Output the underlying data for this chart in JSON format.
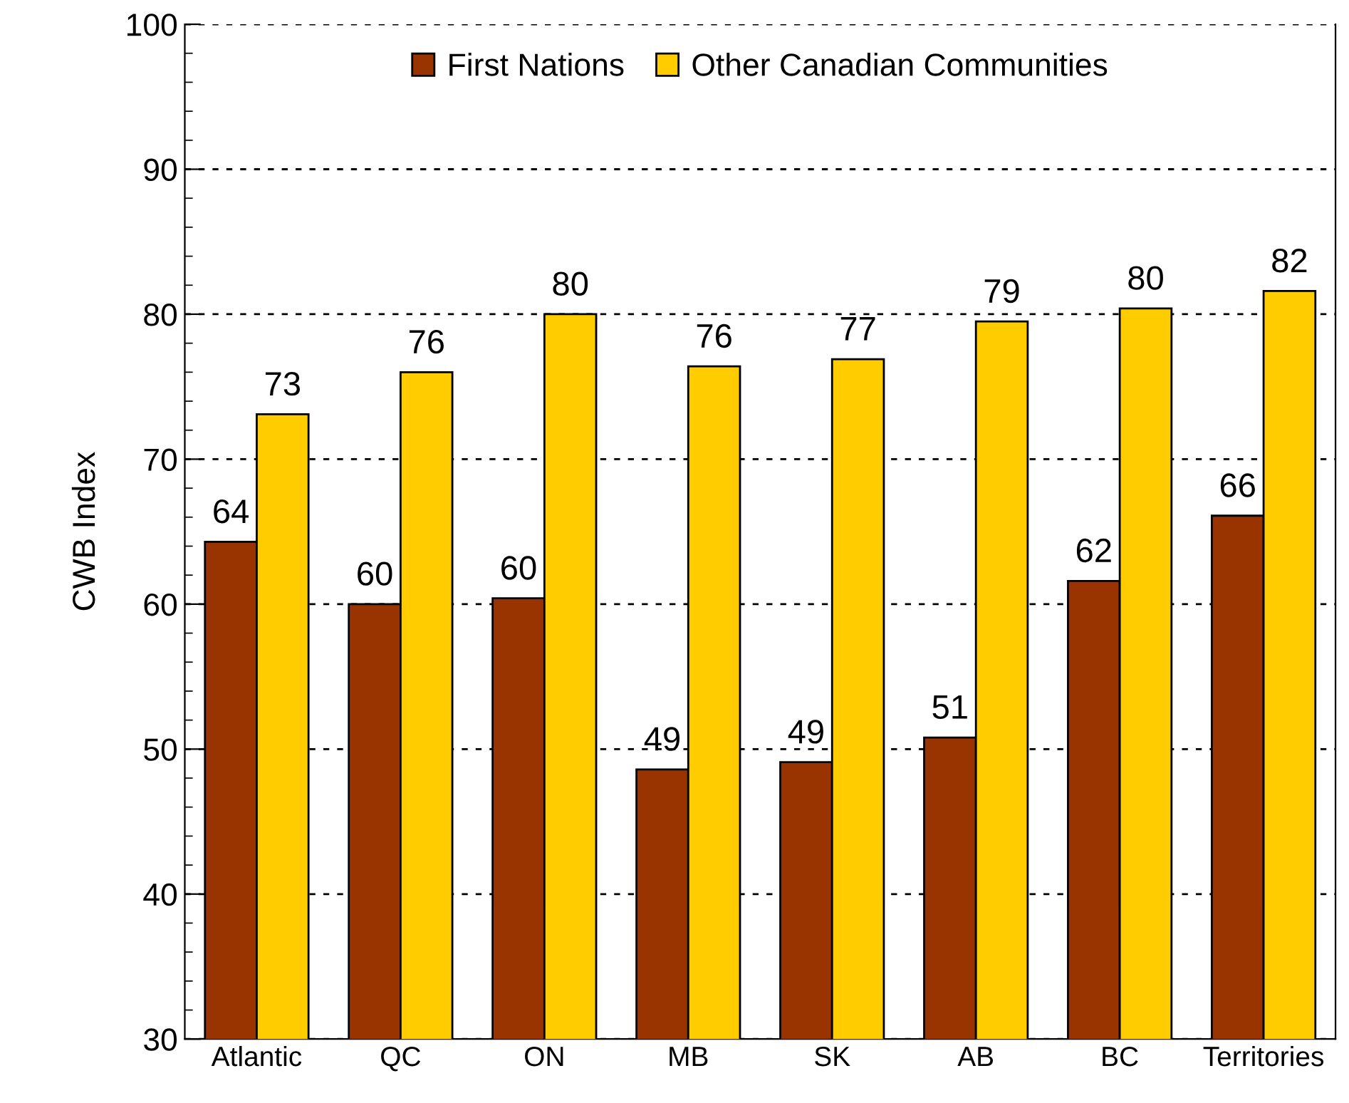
{
  "chart_data": {
    "type": "bar",
    "ylabel": "CWB Index",
    "categories": [
      "Atlantic",
      "QC",
      "ON",
      "MB",
      "SK",
      "AB",
      "BC",
      "Territories"
    ],
    "series": [
      {
        "name": "First Nations",
        "color": "#993300",
        "values": [
          64.3,
          60.0,
          60.4,
          48.6,
          49.1,
          50.8,
          61.6,
          66.1
        ],
        "value_labels": [
          "64",
          "60",
          "60",
          "49",
          "49",
          "51",
          "62",
          "66"
        ]
      },
      {
        "name": "Other Canadian Communities",
        "color": "#ffcc00",
        "values": [
          73.1,
          76.0,
          80.0,
          76.4,
          76.9,
          79.5,
          80.4,
          81.6
        ],
        "value_labels": [
          "73",
          "76",
          "80",
          "76",
          "77",
          "79",
          "80",
          "82"
        ]
      }
    ],
    "ylim": [
      30,
      100
    ],
    "yticks": [
      30,
      40,
      50,
      60,
      70,
      80,
      90,
      100
    ],
    "grid": "y",
    "legend": "top"
  }
}
